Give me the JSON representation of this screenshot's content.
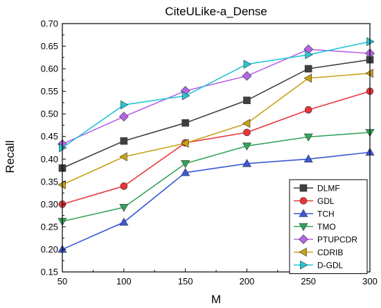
{
  "chart_data": {
    "type": "line",
    "title": "CiteULike-a_Dense",
    "xlabel": "M",
    "ylabel": "Recall",
    "x": [
      50,
      100,
      150,
      200,
      250,
      300
    ],
    "xlim": [
      50,
      300
    ],
    "ylim": [
      0.15,
      0.7
    ],
    "xticks": [
      "50",
      "100",
      "150",
      "200",
      "250",
      "300"
    ],
    "yticks": [
      "0.15",
      "0.20",
      "0.25",
      "0.30",
      "0.35",
      "0.40",
      "0.45",
      "0.50",
      "0.55",
      "0.60",
      "0.65",
      "0.70"
    ],
    "grid": false,
    "legend_position": "bottom-right",
    "series": [
      {
        "name": "DLMF",
        "color": "#3f3f3f",
        "marker": "square",
        "values": [
          0.38,
          0.44,
          0.48,
          0.53,
          0.6,
          0.62
        ]
      },
      {
        "name": "GDL",
        "color": "#e8353a",
        "marker": "circle",
        "values": [
          0.3,
          0.34,
          0.436,
          0.459,
          0.509,
          0.55
        ]
      },
      {
        "name": "TCH",
        "color": "#3a57d6",
        "marker": "triangle-up",
        "values": [
          0.2,
          0.26,
          0.37,
          0.39,
          0.4,
          0.415
        ]
      },
      {
        "name": "TMO",
        "color": "#33a35a",
        "marker": "triangle-down",
        "values": [
          0.262,
          0.293,
          0.39,
          0.429,
          0.449,
          0.459
        ]
      },
      {
        "name": "PTUPCDR",
        "color": "#b565e8",
        "marker": "diamond",
        "values": [
          0.433,
          0.494,
          0.551,
          0.584,
          0.643,
          0.634
        ]
      },
      {
        "name": "CDRIB",
        "color": "#c9a016",
        "marker": "triangle-left",
        "values": [
          0.343,
          0.405,
          0.435,
          0.479,
          0.579,
          0.59
        ]
      },
      {
        "name": "D-GDL",
        "color": "#25c6d3",
        "marker": "triangle-right",
        "values": [
          0.425,
          0.52,
          0.54,
          0.61,
          0.631,
          0.66
        ]
      }
    ]
  }
}
